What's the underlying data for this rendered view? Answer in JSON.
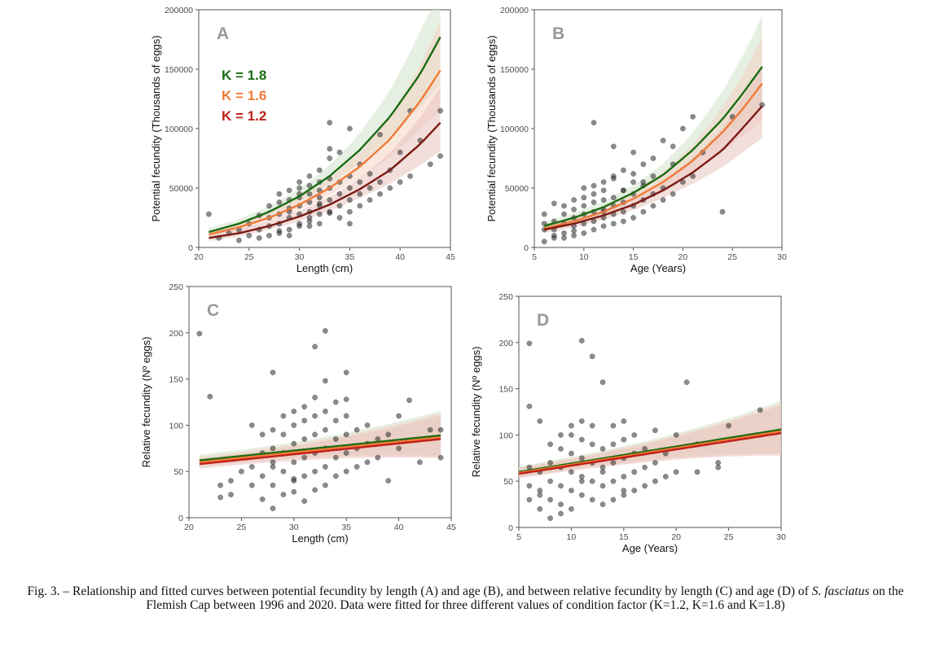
{
  "chart_data": [
    {
      "type": "scatter",
      "panel_label": "A",
      "xlabel": "Length (cm)",
      "ylabel": "Potential fecundity (Thousands of eggs)",
      "xlim": [
        20,
        45
      ],
      "ylim": [
        0,
        200000
      ],
      "xticks": [
        20,
        25,
        30,
        35,
        40,
        45
      ],
      "yticks": [
        0,
        50000,
        100000,
        150000,
        200000
      ],
      "xtick_labels": [
        "20",
        "25",
        "30",
        "35",
        "40",
        "45"
      ],
      "ytick_labels": [
        "0",
        "50000",
        "100000",
        "150000",
        "200000"
      ],
      "legend": [
        {
          "label": "K = 1.8",
          "color": "#1a6b12"
        },
        {
          "label": "K = 1.6",
          "color": "#f07a38"
        },
        {
          "label": "K = 1.2",
          "color": "#c0201a"
        }
      ],
      "series": [
        {
          "name": "K = 1.8",
          "color": "#1a6b12",
          "band": "#cfe3cc",
          "x": [
            21,
            24,
            27,
            30,
            33,
            36,
            39,
            42,
            44
          ],
          "y": [
            13000,
            20000,
            30000,
            43000,
            60000,
            82000,
            110000,
            146000,
            177000
          ]
        },
        {
          "name": "K = 1.6",
          "color": "#f07a38",
          "band": "#f5d3c2",
          "x": [
            21,
            24,
            27,
            30,
            33,
            36,
            39,
            42,
            44
          ],
          "y": [
            11000,
            17000,
            25000,
            36000,
            50000,
            68000,
            91000,
            123000,
            149000
          ]
        },
        {
          "name": "K = 1.2",
          "color": "#7a1a14",
          "band": "#e8c2bd",
          "x": [
            21,
            24,
            27,
            30,
            33,
            36,
            39,
            42,
            44
          ],
          "y": [
            8000,
            12000,
            18000,
            26000,
            36000,
            49000,
            65000,
            87000,
            105000
          ]
        }
      ],
      "points": {
        "x": [
          21,
          22,
          23,
          24,
          24,
          25,
          25,
          26,
          26,
          26,
          27,
          27,
          27,
          27,
          28,
          28,
          28,
          28,
          28,
          29,
          29,
          29,
          29,
          29,
          29,
          30,
          30,
          30,
          30,
          30,
          30,
          30,
          31,
          31,
          31,
          31,
          31,
          31,
          31,
          32,
          32,
          32,
          32,
          32,
          32,
          32,
          33,
          33,
          33,
          33,
          33,
          33,
          34,
          34,
          34,
          34,
          34,
          35,
          35,
          35,
          35,
          35,
          36,
          36,
          36,
          36,
          37,
          37,
          37,
          38,
          38,
          38,
          39,
          39,
          40,
          40,
          41,
          41,
          42,
          43,
          44,
          44,
          33,
          35,
          31,
          28,
          29,
          30,
          32,
          33
        ],
        "y": [
          28000,
          8000,
          12000,
          6000,
          15000,
          10000,
          20000,
          8000,
          15000,
          27000,
          10000,
          18000,
          25000,
          35000,
          12000,
          20000,
          28000,
          38000,
          45000,
          15000,
          25000,
          30000,
          40000,
          48000,
          10000,
          20000,
          28000,
          35000,
          42000,
          50000,
          55000,
          18000,
          22000,
          30000,
          38000,
          45000,
          52000,
          60000,
          25000,
          28000,
          35000,
          42000,
          48000,
          55000,
          65000,
          20000,
          30000,
          40000,
          50000,
          58000,
          105000,
          75000,
          25000,
          35000,
          45000,
          55000,
          80000,
          30000,
          40000,
          50000,
          60000,
          100000,
          35000,
          45000,
          55000,
          70000,
          40000,
          50000,
          62000,
          45000,
          55000,
          95000,
          50000,
          65000,
          55000,
          80000,
          60000,
          115000,
          90000,
          70000,
          77000,
          115000,
          83000,
          20000,
          18000,
          14000,
          33000,
          45000,
          37000,
          29000
        ]
      }
    },
    {
      "type": "scatter",
      "panel_label": "B",
      "xlabel": "Age (Years)",
      "ylabel": "Potential fecundity (Thousands of eggs)",
      "xlim": [
        5,
        30
      ],
      "ylim": [
        0,
        200000
      ],
      "xticks": [
        5,
        10,
        15,
        20,
        25,
        30
      ],
      "yticks": [
        0,
        50000,
        100000,
        150000,
        200000
      ],
      "xtick_labels": [
        "5",
        "10",
        "15",
        "20",
        "25",
        "30"
      ],
      "ytick_labels": [
        "0",
        "50000",
        "100000",
        "150000",
        "200000"
      ],
      "series": [
        {
          "name": "K = 1.8",
          "color": "#1a6b12",
          "band": "#cfe3cc",
          "x": [
            6,
            9,
            12,
            15,
            18,
            21,
            24,
            26,
            28
          ],
          "y": [
            18000,
            25000,
            34000,
            46000,
            61000,
            82000,
            108000,
            129000,
            152000
          ]
        },
        {
          "name": "K = 1.6",
          "color": "#f07a38",
          "band": "#f5d3c2",
          "x": [
            6,
            9,
            12,
            15,
            18,
            21,
            24,
            26,
            28
          ],
          "y": [
            16000,
            22000,
            30000,
            41000,
            55000,
            73000,
            97000,
            116000,
            138000
          ]
        },
        {
          "name": "K = 1.2",
          "color": "#7a1a14",
          "band": "#e8c2bd",
          "x": [
            6,
            9,
            12,
            15,
            18,
            21,
            24,
            26,
            28
          ],
          "y": [
            15000,
            20000,
            27000,
            36000,
            48000,
            63000,
            82000,
            100000,
            119000
          ]
        }
      ],
      "points": {
        "x": [
          6,
          6,
          6,
          6,
          7,
          7,
          7,
          7,
          8,
          8,
          8,
          8,
          8,
          9,
          9,
          9,
          9,
          9,
          10,
          10,
          10,
          10,
          10,
          10,
          11,
          11,
          11,
          11,
          11,
          11,
          12,
          12,
          12,
          12,
          12,
          12,
          13,
          13,
          13,
          13,
          13,
          13,
          14,
          14,
          14,
          14,
          14,
          15,
          15,
          15,
          15,
          15,
          16,
          16,
          16,
          16,
          17,
          17,
          17,
          18,
          18,
          18,
          19,
          19,
          20,
          20,
          21,
          21,
          22,
          24,
          25,
          28,
          11,
          13,
          15,
          17,
          19,
          12,
          14,
          16,
          7,
          9
        ],
        "y": [
          5000,
          15000,
          20000,
          28000,
          8000,
          15000,
          22000,
          37000,
          8000,
          12000,
          20000,
          28000,
          35000,
          10000,
          18000,
          25000,
          32000,
          40000,
          12000,
          20000,
          28000,
          35000,
          42000,
          50000,
          15000,
          22000,
          30000,
          38000,
          45000,
          105000,
          18000,
          25000,
          32000,
          40000,
          48000,
          55000,
          20000,
          28000,
          35000,
          42000,
          60000,
          85000,
          22000,
          30000,
          38000,
          48000,
          65000,
          25000,
          35000,
          45000,
          55000,
          80000,
          30000,
          40000,
          52000,
          70000,
          35000,
          45000,
          60000,
          40000,
          50000,
          90000,
          45000,
          70000,
          55000,
          100000,
          60000,
          110000,
          80000,
          30000,
          110000,
          120000,
          52000,
          58000,
          62000,
          75000,
          85000,
          30000,
          48000,
          55000,
          10000,
          14000
        ]
      }
    },
    {
      "type": "scatter",
      "panel_label": "C",
      "xlabel": "Length (cm)",
      "ylabel": "Relative fecundity (Nº eggs)",
      "xlim": [
        20,
        45
      ],
      "ylim": [
        0,
        250
      ],
      "xticks": [
        20,
        25,
        30,
        35,
        40,
        45
      ],
      "yticks": [
        0,
        50,
        100,
        150,
        200,
        250
      ],
      "xtick_labels": [
        "20",
        "25",
        "30",
        "35",
        "40",
        "45"
      ],
      "ytick_labels": [
        "0",
        "50",
        "100",
        "150",
        "200",
        "250"
      ],
      "series": [
        {
          "name": "K = 1.8",
          "color": "#1a6b12",
          "band": "#cfe3cc",
          "x": [
            21,
            44
          ],
          "y": [
            62,
            89
          ]
        },
        {
          "name": "K = 1.6",
          "color": "#f07a38",
          "band": "#f5d3c2",
          "x": [
            21,
            44
          ],
          "y": [
            60,
            87
          ]
        },
        {
          "name": "K = 1.2",
          "color": "#c0201a",
          "band": "#e8c2bd",
          "x": [
            21,
            44
          ],
          "y": [
            58,
            85
          ]
        }
      ],
      "points": {
        "x": [
          21,
          22,
          23,
          23,
          24,
          24,
          25,
          25,
          26,
          26,
          26,
          27,
          27,
          27,
          27,
          28,
          28,
          28,
          28,
          28,
          28,
          29,
          29,
          29,
          29,
          29,
          30,
          30,
          30,
          30,
          30,
          30,
          31,
          31,
          31,
          31,
          31,
          31,
          32,
          32,
          32,
          32,
          32,
          32,
          33,
          33,
          33,
          33,
          33,
          33,
          34,
          34,
          34,
          34,
          34,
          35,
          35,
          35,
          35,
          35,
          36,
          36,
          36,
          37,
          37,
          37,
          38,
          38,
          39,
          39,
          40,
          40,
          41,
          42,
          43,
          44,
          44,
          32,
          33,
          35,
          28,
          30
        ],
        "y": [
          199,
          131,
          22,
          35,
          25,
          40,
          50,
          65,
          35,
          55,
          100,
          20,
          45,
          70,
          90,
          10,
          35,
          55,
          75,
          95,
          157,
          25,
          50,
          70,
          90,
          110,
          40,
          60,
          80,
          100,
          115,
          28,
          45,
          65,
          85,
          105,
          120,
          18,
          50,
          70,
          90,
          110,
          130,
          185,
          35,
          55,
          75,
          95,
          115,
          202,
          45,
          65,
          85,
          105,
          125,
          50,
          70,
          90,
          110,
          157,
          55,
          75,
          95,
          60,
          80,
          100,
          65,
          85,
          40,
          90,
          75,
          110,
          127,
          60,
          95,
          65,
          95,
          30,
          148,
          128,
          60,
          42
        ]
      }
    },
    {
      "type": "scatter",
      "panel_label": "D",
      "xlabel": "Age (Years)",
      "ylabel": "Relative fecundity (Nº eggs)",
      "xlim": [
        5,
        30
      ],
      "ylim": [
        0,
        250
      ],
      "xticks": [
        5,
        10,
        15,
        20,
        25,
        30
      ],
      "yticks": [
        0,
        50,
        100,
        150,
        200,
        250
      ],
      "xtick_labels": [
        "5",
        "10",
        "15",
        "20",
        "25",
        "30"
      ],
      "ytick_labels": [
        "0",
        "50",
        "100",
        "150",
        "200",
        "250"
      ],
      "series": [
        {
          "name": "K = 1.8",
          "color": "#1a6b12",
          "band": "#cfe3cc",
          "x": [
            5,
            30
          ],
          "y": [
            60,
            106
          ]
        },
        {
          "name": "K = 1.6",
          "color": "#f07a38",
          "band": "#f5d3c2",
          "x": [
            5,
            30
          ],
          "y": [
            59,
            104
          ]
        },
        {
          "name": "K = 1.2",
          "color": "#c0201a",
          "band": "#e8c2bd",
          "x": [
            5,
            30
          ],
          "y": [
            58,
            102
          ]
        }
      ],
      "points": {
        "x": [
          6,
          6,
          6,
          6,
          6,
          7,
          7,
          7,
          7,
          8,
          8,
          8,
          8,
          8,
          9,
          9,
          9,
          9,
          9,
          10,
          10,
          10,
          10,
          10,
          10,
          11,
          11,
          11,
          11,
          11,
          11,
          12,
          12,
          12,
          12,
          12,
          12,
          13,
          13,
          13,
          13,
          13,
          14,
          14,
          14,
          14,
          14,
          15,
          15,
          15,
          15,
          15,
          16,
          16,
          16,
          16,
          17,
          17,
          17,
          18,
          18,
          18,
          19,
          19,
          20,
          20,
          21,
          22,
          22,
          24,
          24,
          25,
          28,
          7,
          9,
          11,
          13,
          15
        ],
        "y": [
          199,
          131,
          30,
          45,
          65,
          20,
          40,
          60,
          115,
          10,
          30,
          50,
          70,
          90,
          25,
          45,
          65,
          85,
          100,
          20,
          40,
          60,
          80,
          100,
          110,
          35,
          55,
          75,
          95,
          115,
          202,
          30,
          50,
          70,
          90,
          110,
          185,
          25,
          45,
          65,
          85,
          157,
          30,
          50,
          70,
          90,
          110,
          35,
          55,
          75,
          95,
          115,
          40,
          60,
          80,
          100,
          45,
          65,
          85,
          50,
          70,
          105,
          55,
          80,
          60,
          100,
          157,
          60,
          90,
          65,
          70,
          110,
          127,
          35,
          15,
          50,
          60,
          40
        ]
      }
    }
  ],
  "caption": {
    "part1": "Fig. 3. – Relationship and fitted curves between potential fecundity by length (A) and age (B), and between relative fecundity by length (C) and age (D) of ",
    "species": "S. fasciatus",
    "part2": " on the Flemish Cap between 1996 and 2020. Data were fitted for three different values of condition factor (K=1.2, K=1.6 and K=1.8)"
  }
}
